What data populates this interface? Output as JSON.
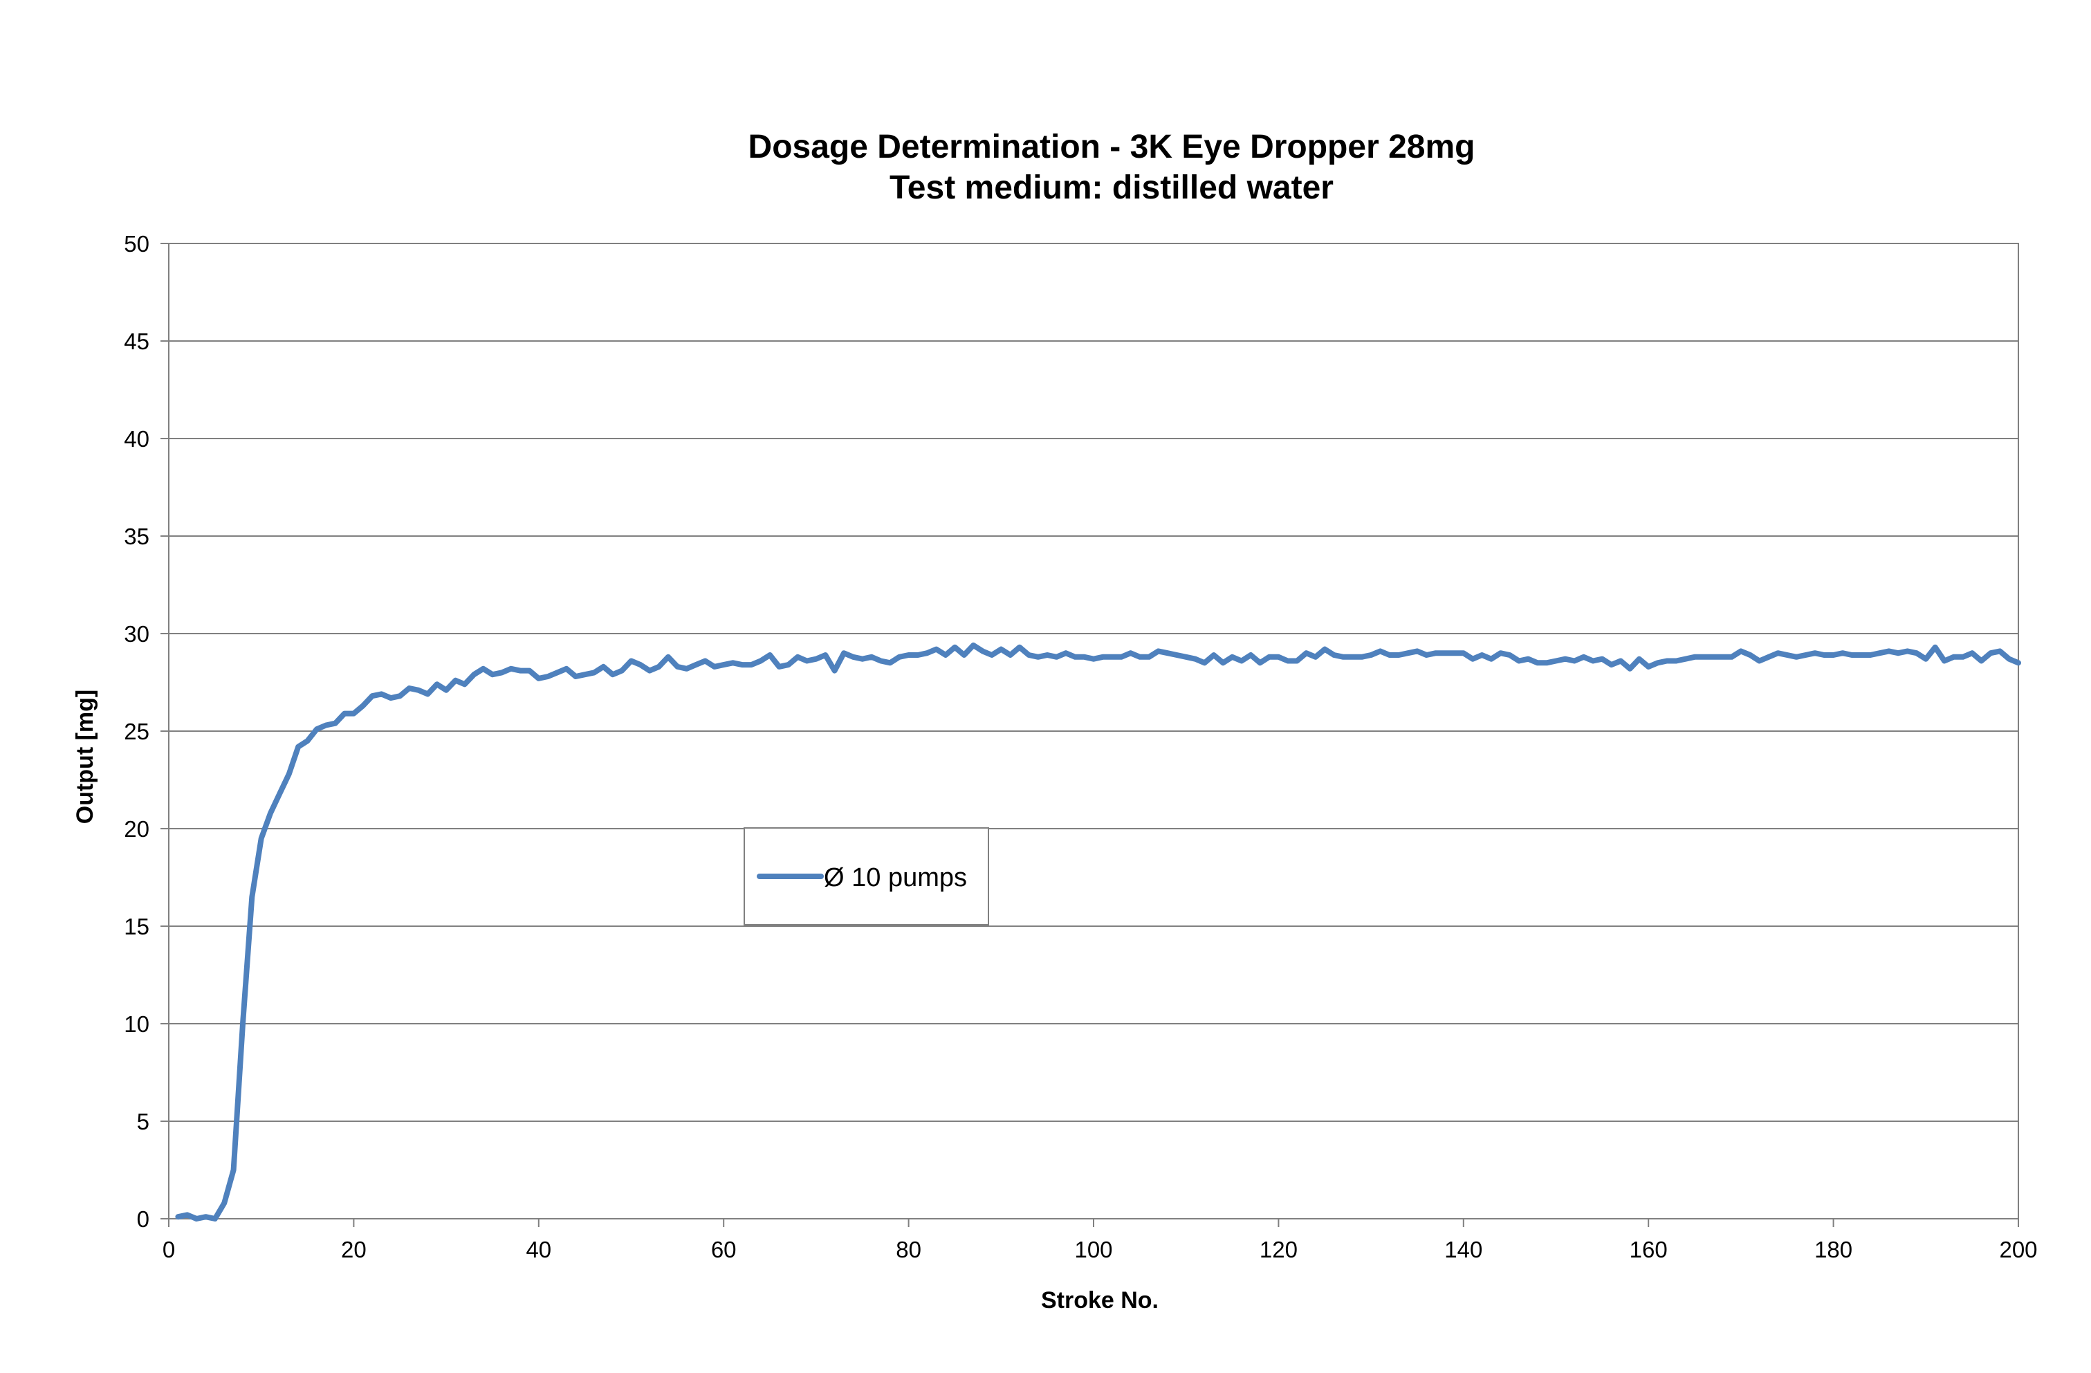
{
  "chart_data": {
    "type": "line",
    "title": "Dosage Determination - 3K Eye Dropper 28mg",
    "subtitle": "Test medium: distilled water",
    "xlabel": "Stroke No.",
    "ylabel": "Output [mg]",
    "xlim": [
      0,
      200
    ],
    "ylim": [
      0,
      50
    ],
    "xticks": [
      0,
      20,
      40,
      60,
      80,
      100,
      120,
      140,
      160,
      180,
      200
    ],
    "yticks": [
      0,
      5,
      10,
      15,
      20,
      25,
      30,
      35,
      40,
      45,
      50
    ],
    "grid": "horizontal",
    "legend_position": "center",
    "line_color": "#4F81BD",
    "series": [
      {
        "name": "Ø 10 pumps",
        "x": [
          1,
          2,
          3,
          4,
          5,
          6,
          7,
          8,
          9,
          10,
          11,
          12,
          13,
          14,
          15,
          16,
          17,
          18,
          19,
          20,
          21,
          22,
          23,
          24,
          25,
          26,
          27,
          28,
          29,
          30,
          31,
          32,
          33,
          34,
          35,
          36,
          37,
          38,
          39,
          40,
          41,
          42,
          43,
          44,
          45,
          46,
          47,
          48,
          49,
          50,
          51,
          52,
          53,
          54,
          55,
          56,
          57,
          58,
          59,
          60,
          61,
          62,
          63,
          64,
          65,
          66,
          67,
          68,
          69,
          70,
          71,
          72,
          73,
          74,
          75,
          76,
          77,
          78,
          79,
          80,
          81,
          82,
          83,
          84,
          85,
          86,
          87,
          88,
          89,
          90,
          91,
          92,
          93,
          94,
          95,
          96,
          97,
          98,
          99,
          100,
          101,
          102,
          103,
          104,
          105,
          106,
          107,
          108,
          109,
          110,
          111,
          112,
          113,
          114,
          115,
          116,
          117,
          118,
          119,
          120,
          121,
          122,
          123,
          124,
          125,
          126,
          127,
          128,
          129,
          130,
          131,
          132,
          133,
          134,
          135,
          136,
          137,
          138,
          139,
          140,
          141,
          142,
          143,
          144,
          145,
          146,
          147,
          148,
          149,
          150,
          151,
          152,
          153,
          154,
          155,
          156,
          157,
          158,
          159,
          160,
          161,
          162,
          163,
          164,
          165,
          166,
          167,
          168,
          169,
          170,
          171,
          172,
          173,
          174,
          175,
          176,
          177,
          178,
          179,
          180,
          181,
          182,
          183,
          184,
          185,
          186,
          187,
          188,
          189,
          190,
          191,
          192,
          193,
          194,
          195,
          196,
          197,
          198,
          199,
          200
        ],
        "values": [
          0.1,
          0.2,
          0.0,
          0.1,
          0.0,
          0.8,
          2.5,
          10.0,
          16.5,
          19.5,
          20.8,
          21.8,
          22.8,
          24.2,
          24.5,
          25.1,
          25.3,
          25.4,
          25.9,
          25.9,
          26.3,
          26.8,
          26.9,
          26.7,
          26.8,
          27.2,
          27.1,
          26.9,
          27.4,
          27.1,
          27.6,
          27.4,
          27.9,
          28.2,
          27.9,
          28.0,
          28.2,
          28.1,
          28.1,
          27.7,
          27.8,
          28.0,
          28.2,
          27.8,
          27.9,
          28.0,
          28.3,
          27.9,
          28.1,
          28.6,
          28.4,
          28.1,
          28.3,
          28.8,
          28.3,
          28.2,
          28.4,
          28.6,
          28.3,
          28.4,
          28.5,
          28.4,
          28.4,
          28.6,
          28.9,
          28.3,
          28.4,
          28.8,
          28.6,
          28.7,
          28.9,
          28.1,
          29.0,
          28.8,
          28.7,
          28.8,
          28.6,
          28.5,
          28.8,
          28.9,
          28.9,
          29.0,
          29.2,
          28.9,
          29.3,
          28.9,
          29.4,
          29.1,
          28.9,
          29.2,
          28.9,
          29.3,
          28.9,
          28.8,
          28.9,
          28.8,
          29.0,
          28.8,
          28.8,
          28.7,
          28.8,
          28.8,
          28.8,
          29.0,
          28.8,
          28.8,
          29.1,
          29.0,
          28.9,
          28.8,
          28.7,
          28.5,
          28.9,
          28.5,
          28.8,
          28.6,
          28.9,
          28.5,
          28.8,
          28.8,
          28.6,
          28.6,
          29.0,
          28.8,
          29.2,
          28.9,
          28.8,
          28.8,
          28.8,
          28.9,
          29.1,
          28.9,
          28.9,
          29.0,
          29.1,
          28.9,
          29.0,
          29.0,
          29.0,
          29.0,
          28.7,
          28.9,
          28.7,
          29.0,
          28.9,
          28.6,
          28.7,
          28.5,
          28.5,
          28.6,
          28.7,
          28.6,
          28.8,
          28.6,
          28.7,
          28.4,
          28.6,
          28.2,
          28.7,
          28.3,
          28.5,
          28.6,
          28.6,
          28.7,
          28.8,
          28.8,
          28.8,
          28.8,
          28.8,
          29.1,
          28.9,
          28.6,
          28.8,
          29.0,
          28.9,
          28.8,
          28.9,
          29.0,
          28.9,
          28.9,
          29.0,
          28.9,
          28.9,
          28.9,
          29.0,
          29.1,
          29.0,
          29.1,
          29.0,
          28.7,
          29.3,
          28.6,
          28.8,
          28.8,
          29.0,
          28.6,
          29.0,
          29.1,
          28.7,
          28.5
        ]
      }
    ]
  }
}
